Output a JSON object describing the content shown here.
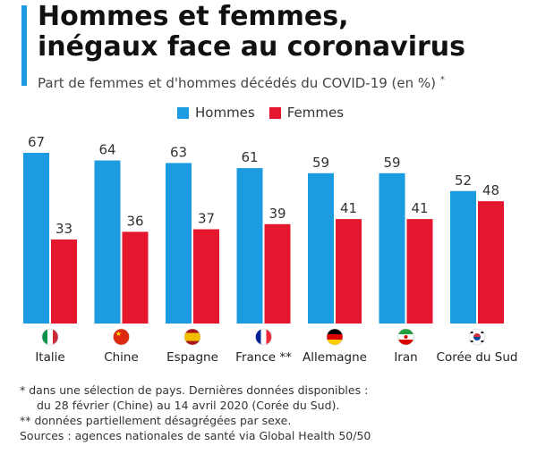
{
  "header": {
    "title_line1": "Hommes et femmes,",
    "title_line2": "inégaux face au coronavirus",
    "subtitle": "Part de femmes et d'hommes décédés du COVID-19 (en %)",
    "subtitle_mark": "*"
  },
  "colors": {
    "accent": "#1b9be0",
    "hommes": "#1b9be0",
    "femmes": "#e5172f"
  },
  "chart_data": {
    "type": "bar",
    "title": "Hommes et femmes, inégaux face au coronavirus",
    "subtitle": "Part de femmes et d'hommes décédés du COVID-19 (en %)",
    "categories": [
      "Italie",
      "Chine",
      "Espagne",
      "France **",
      "Allemagne",
      "Iran",
      "Corée du Sud"
    ],
    "country_flags": [
      "italy-flag",
      "china-flag",
      "spain-flag",
      "france-flag",
      "germany-flag",
      "iran-flag",
      "south-korea-flag"
    ],
    "series": [
      {
        "name": "Hommes",
        "values": [
          67,
          64,
          63,
          61,
          59,
          59,
          52
        ]
      },
      {
        "name": "Femmes",
        "values": [
          33,
          36,
          37,
          39,
          41,
          41,
          48
        ]
      }
    ],
    "ylim": [
      0,
      67
    ],
    "grid": false,
    "legend": "top-center"
  },
  "footnotes": {
    "note1_line1": "*   dans une sélection de pays. Dernières données disponibles :",
    "note1_line2": "du 28 février (Chine) au 14 avril 2020 (Corée du Sud).",
    "note2": "** données partiellement désagrégées par sexe.",
    "sources": "Sources : agences nationales de santé via Global Health 50/50"
  }
}
